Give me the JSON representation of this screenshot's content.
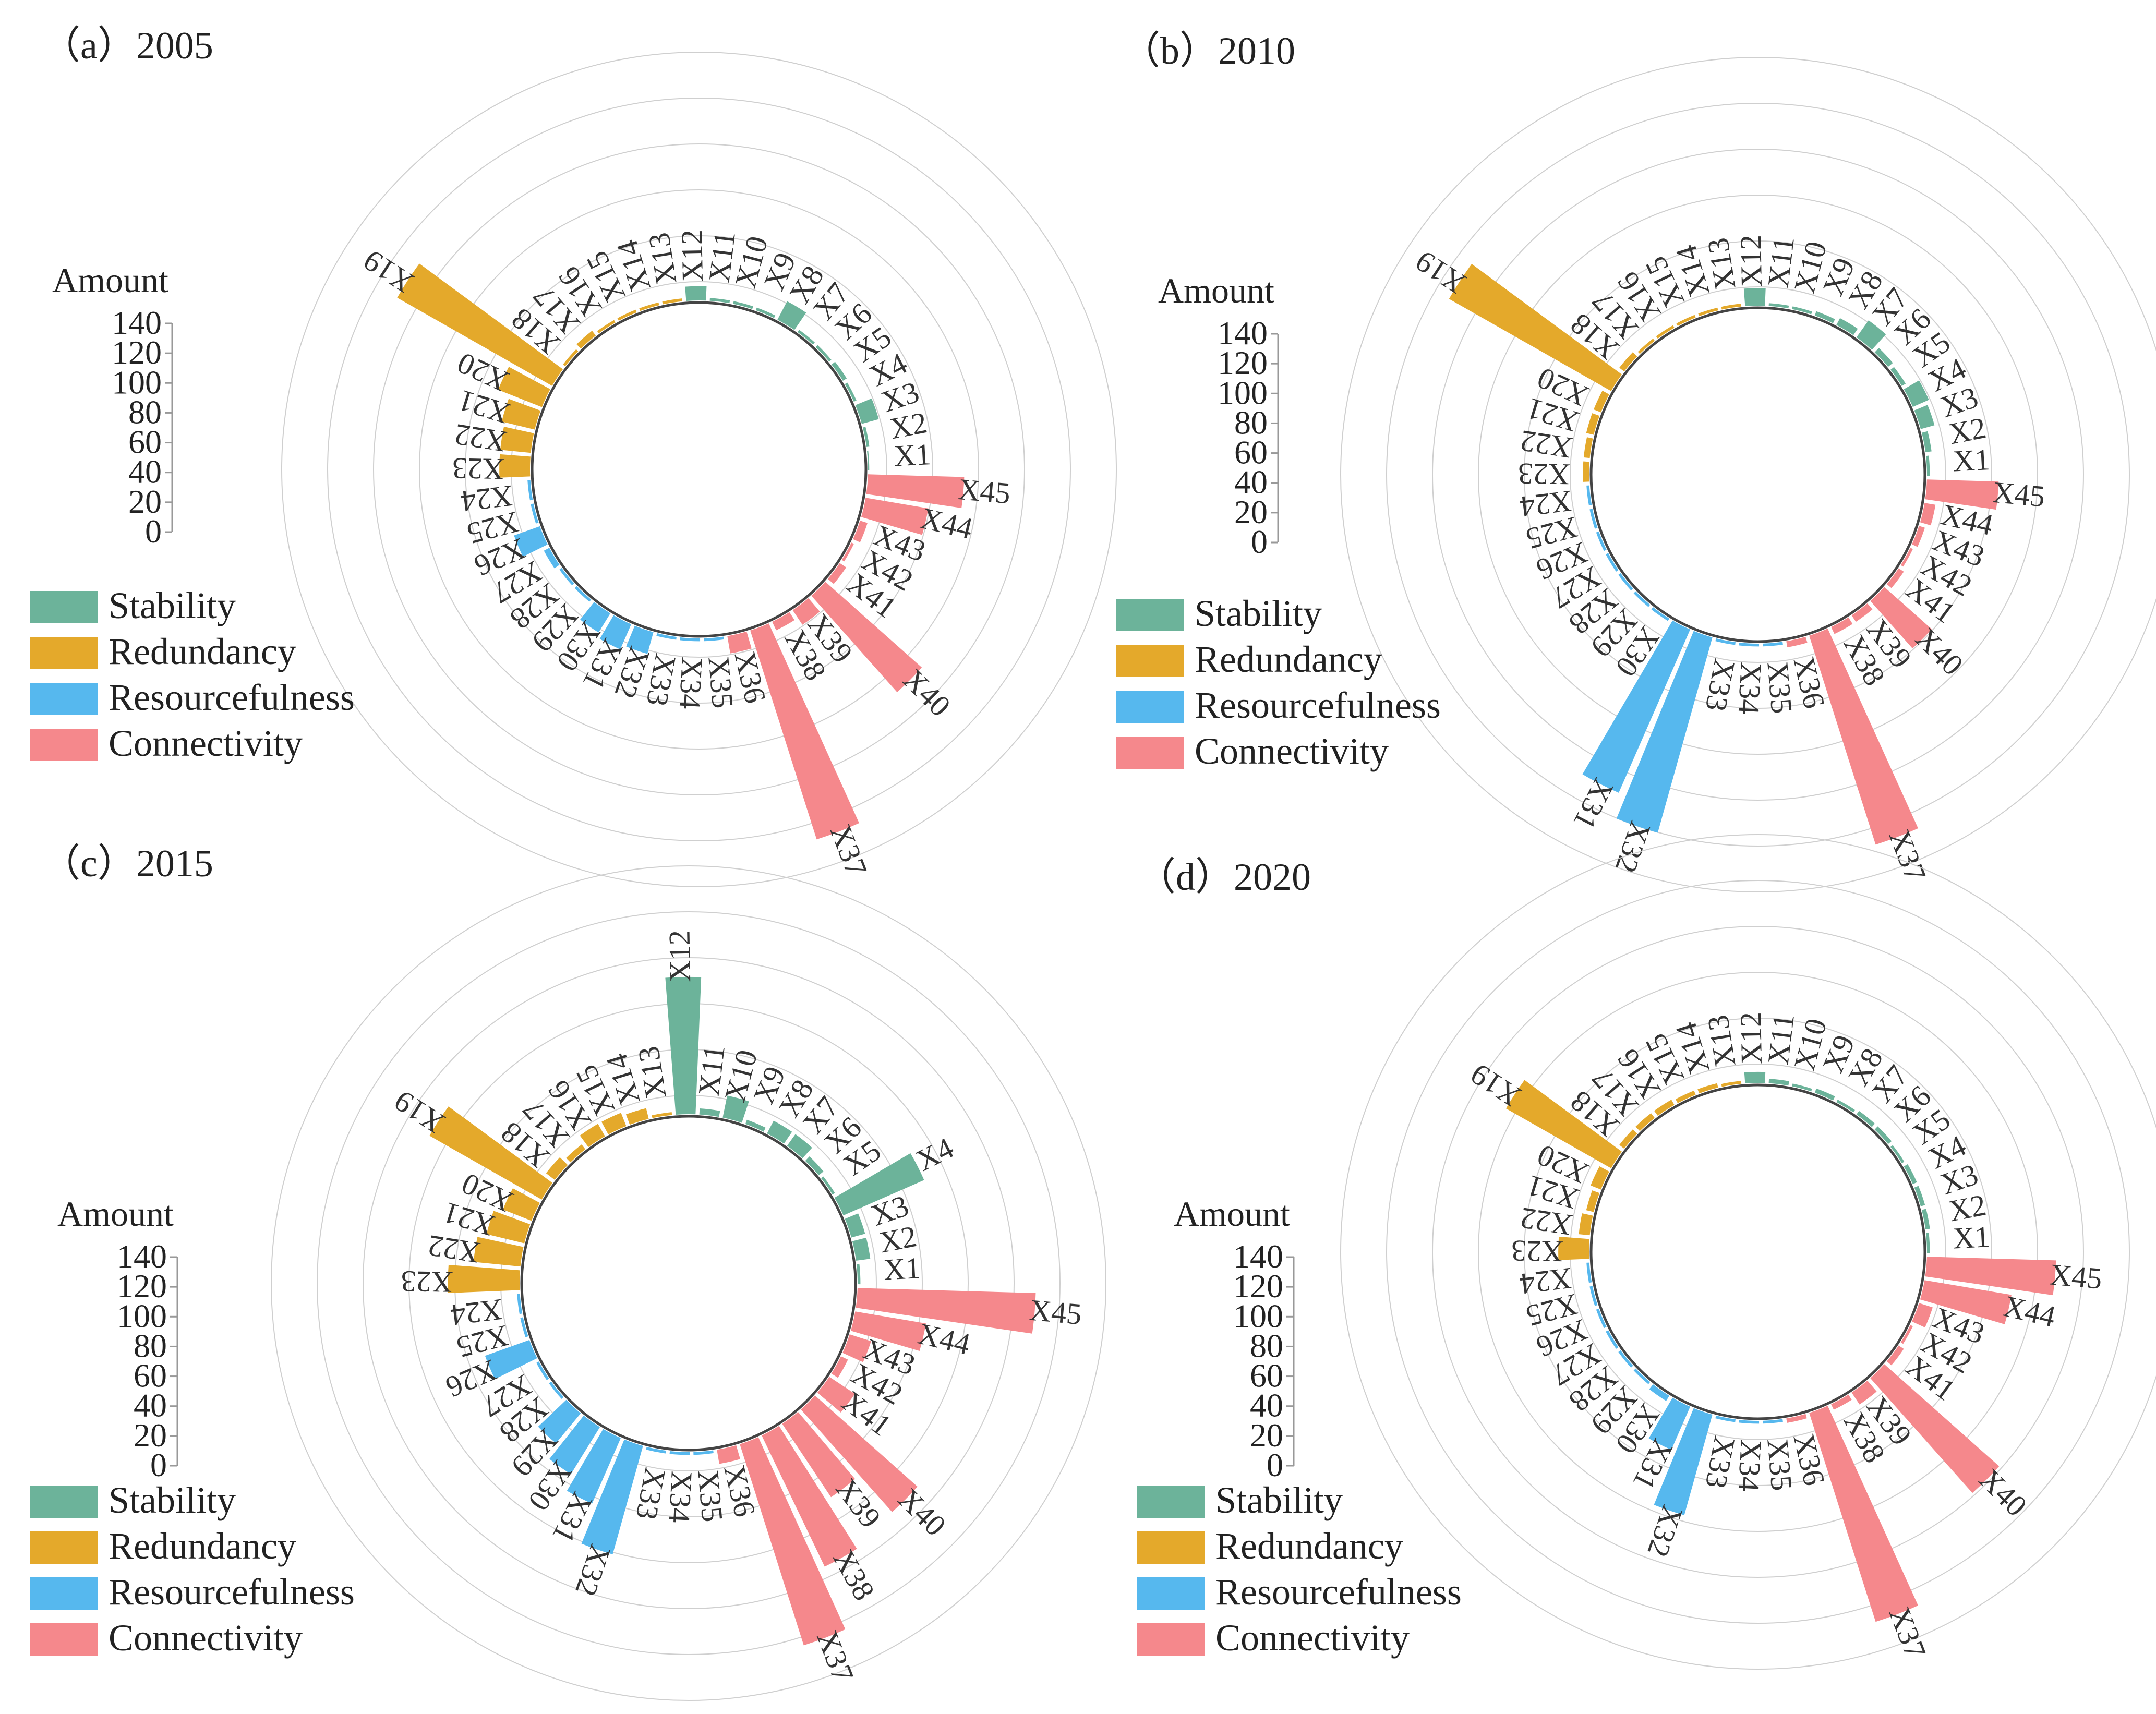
{
  "colors": {
    "Stability": "#6cb39a",
    "Redundancy": "#e4a92b",
    "Resourcefulness": "#56b8ee",
    "Connectivity": "#f5888c"
  },
  "legend_title": "Amount",
  "legend_ticks": [
    "140",
    "120",
    "100",
    "80",
    "60",
    "40",
    "20",
    "0"
  ],
  "legend_items": [
    "Stability",
    "Redundancy",
    "Resourcefulness",
    "Connectivity"
  ],
  "chart_data": [
    {
      "type": "radial-bar",
      "title": "（a）2005",
      "categories": [
        "X1",
        "X2",
        "X3",
        "X4",
        "X5",
        "X6",
        "X7",
        "X8",
        "X9",
        "X10",
        "X11",
        "X12",
        "X13",
        "X14",
        "X15",
        "X16",
        "X17",
        "X18",
        "X19",
        "X20",
        "X21",
        "X22",
        "X23",
        "X24",
        "X25",
        "X26",
        "X27",
        "X28",
        "X29",
        "X30",
        "X31",
        "X32",
        "X33",
        "X34",
        "X35",
        "X36",
        "X37",
        "X38",
        "X39",
        "X40",
        "X41",
        "X42",
        "X43",
        "X44",
        "X45"
      ],
      "groups": [
        "Stability",
        "Stability",
        "Stability",
        "Stability",
        "Stability",
        "Stability",
        "Stability",
        "Stability",
        "Stability",
        "Stability",
        "Stability",
        "Stability",
        "Redundancy",
        "Redundancy",
        "Redundancy",
        "Redundancy",
        "Redundancy",
        "Redundancy",
        "Redundancy",
        "Redundancy",
        "Redundancy",
        "Redundancy",
        "Redundancy",
        "Resourcefulness",
        "Resourcefulness",
        "Resourcefulness",
        "Resourcefulness",
        "Resourcefulness",
        "Resourcefulness",
        "Resourcefulness",
        "Resourcefulness",
        "Resourcefulness",
        "Resourcefulness",
        "Resourcefulness",
        "Resourcefulness",
        "Connectivity",
        "Connectivity",
        "Connectivity",
        "Connectivity",
        "Connectivity",
        "Connectivity",
        "Connectivity",
        "Connectivity",
        "Connectivity",
        "Connectivity"
      ],
      "values": [
        2,
        3,
        12,
        3,
        4,
        3,
        3,
        14,
        3,
        3,
        3,
        10,
        3,
        3,
        3,
        3,
        5,
        3,
        110,
        30,
        22,
        20,
        20,
        3,
        3,
        18,
        5,
        3,
        3,
        15,
        18,
        15,
        3,
        3,
        3,
        12,
        135,
        7,
        12,
        80,
        6,
        3,
        6,
        40,
        60
      ],
      "ylim": [
        0,
        140
      ]
    },
    {
      "type": "radial-bar",
      "title": "（b）2010",
      "categories": [
        "X1",
        "X2",
        "X3",
        "X4",
        "X5",
        "X6",
        "X7",
        "X8",
        "X9",
        "X10",
        "X11",
        "X12",
        "X13",
        "X14",
        "X15",
        "X16",
        "X17",
        "X18",
        "X19",
        "X20",
        "X21",
        "X22",
        "X23",
        "X24",
        "X25",
        "X26",
        "X27",
        "X28",
        "X29",
        "X30",
        "X31",
        "X32",
        "X33",
        "X34",
        "X35",
        "X36",
        "X37",
        "X38",
        "X39",
        "X40",
        "X41",
        "X42",
        "X43",
        "X44",
        "X45"
      ],
      "groups": [
        "Stability",
        "Stability",
        "Stability",
        "Stability",
        "Stability",
        "Stability",
        "Stability",
        "Stability",
        "Stability",
        "Stability",
        "Stability",
        "Stability",
        "Redundancy",
        "Redundancy",
        "Redundancy",
        "Redundancy",
        "Redundancy",
        "Redundancy",
        "Redundancy",
        "Redundancy",
        "Redundancy",
        "Redundancy",
        "Redundancy",
        "Resourcefulness",
        "Resourcefulness",
        "Resourcefulness",
        "Resourcefulness",
        "Resourcefulness",
        "Resourcefulness",
        "Resourcefulness",
        "Resourcefulness",
        "Resourcefulness",
        "Resourcefulness",
        "Resourcefulness",
        "Resourcefulness",
        "Connectivity",
        "Connectivity",
        "Connectivity",
        "Connectivity",
        "Connectivity",
        "Connectivity",
        "Connectivity",
        "Connectivity",
        "Connectivity",
        "Connectivity"
      ],
      "values": [
        3,
        5,
        10,
        12,
        4,
        5,
        14,
        6,
        4,
        3,
        3,
        12,
        3,
        3,
        3,
        3,
        3,
        5,
        115,
        6,
        6,
        5,
        5,
        3,
        3,
        3,
        3,
        3,
        3,
        3,
        110,
        125,
        3,
        3,
        3,
        5,
        135,
        6,
        6,
        40,
        5,
        3,
        5,
        8,
        45
      ],
      "ylim": [
        0,
        140
      ]
    },
    {
      "type": "radial-bar",
      "title": "（c）2015",
      "categories": [
        "X1",
        "X2",
        "X3",
        "X4",
        "X5",
        "X6",
        "X7",
        "X8",
        "X9",
        "X10",
        "X11",
        "X12",
        "X13",
        "X14",
        "X15",
        "X16",
        "X17",
        "X18",
        "X19",
        "X20",
        "X21",
        "X22",
        "X23",
        "X24",
        "X25",
        "X26",
        "X27",
        "X28",
        "X29",
        "X30",
        "X31",
        "X32",
        "X33",
        "X34",
        "X35",
        "X36",
        "X37",
        "X38",
        "X39",
        "X40",
        "X41",
        "X42",
        "X43",
        "X44",
        "X45"
      ],
      "groups": [
        "Stability",
        "Stability",
        "Stability",
        "Stability",
        "Stability",
        "Stability",
        "Stability",
        "Stability",
        "Stability",
        "Stability",
        "Stability",
        "Stability",
        "Redundancy",
        "Redundancy",
        "Redundancy",
        "Redundancy",
        "Redundancy",
        "Redundancy",
        "Redundancy",
        "Redundancy",
        "Redundancy",
        "Redundancy",
        "Redundancy",
        "Resourcefulness",
        "Resourcefulness",
        "Resourcefulness",
        "Resourcefulness",
        "Resourcefulness",
        "Resourcefulness",
        "Resourcefulness",
        "Resourcefulness",
        "Resourcefulness",
        "Resourcefulness",
        "Resourcefulness",
        "Resourcefulness",
        "Connectivity",
        "Connectivity",
        "Connectivity",
        "Connectivity",
        "Connectivity",
        "Connectivity",
        "Connectivity",
        "Connectivity",
        "Connectivity",
        "Connectivity"
      ],
      "values": [
        3,
        10,
        10,
        55,
        3,
        5,
        10,
        10,
        4,
        15,
        5,
        85,
        3,
        8,
        10,
        10,
        5,
        8,
        80,
        20,
        25,
        30,
        45,
        3,
        3,
        30,
        3,
        3,
        25,
        35,
        45,
        70,
        3,
        3,
        3,
        10,
        130,
        90,
        55,
        85,
        20,
        6,
        15,
        45,
        110
      ],
      "ylim": [
        0,
        140
      ]
    },
    {
      "type": "radial-bar",
      "title": "（d）2020",
      "categories": [
        "X1",
        "X2",
        "X3",
        "X4",
        "X5",
        "X6",
        "X7",
        "X8",
        "X9",
        "X10",
        "X11",
        "X12",
        "X13",
        "X14",
        "X15",
        "X16",
        "X17",
        "X18",
        "X19",
        "X20",
        "X21",
        "X22",
        "X23",
        "X24",
        "X25",
        "X26",
        "X27",
        "X28",
        "X29",
        "X30",
        "X31",
        "X32",
        "X33",
        "X34",
        "X35",
        "X36",
        "X37",
        "X38",
        "X39",
        "X40",
        "X41",
        "X42",
        "X43",
        "X44",
        "X45"
      ],
      "groups": [
        "Stability",
        "Stability",
        "Stability",
        "Stability",
        "Stability",
        "Stability",
        "Stability",
        "Stability",
        "Stability",
        "Stability",
        "Stability",
        "Stability",
        "Redundancy",
        "Redundancy",
        "Redundancy",
        "Redundancy",
        "Redundancy",
        "Redundancy",
        "Redundancy",
        "Redundancy",
        "Redundancy",
        "Redundancy",
        "Redundancy",
        "Resourcefulness",
        "Resourcefulness",
        "Resourcefulness",
        "Resourcefulness",
        "Resourcefulness",
        "Resourcefulness",
        "Resourcefulness",
        "Resourcefulness",
        "Resourcefulness",
        "Resourcefulness",
        "Resourcefulness",
        "Resourcefulness",
        "Connectivity",
        "Connectivity",
        "Connectivity",
        "Connectivity",
        "Connectivity",
        "Connectivity",
        "Connectivity",
        "Connectivity",
        "Connectivity",
        "Connectivity"
      ],
      "values": [
        3,
        4,
        4,
        4,
        3,
        4,
        4,
        3,
        4,
        3,
        4,
        8,
        3,
        4,
        4,
        5,
        5,
        5,
        75,
        8,
        6,
        8,
        20,
        3,
        3,
        3,
        3,
        3,
        3,
        5,
        30,
        65,
        3,
        3,
        3,
        4,
        135,
        5,
        10,
        95,
        5,
        3,
        10,
        55,
        80
      ],
      "ylim": [
        0,
        140
      ]
    }
  ]
}
